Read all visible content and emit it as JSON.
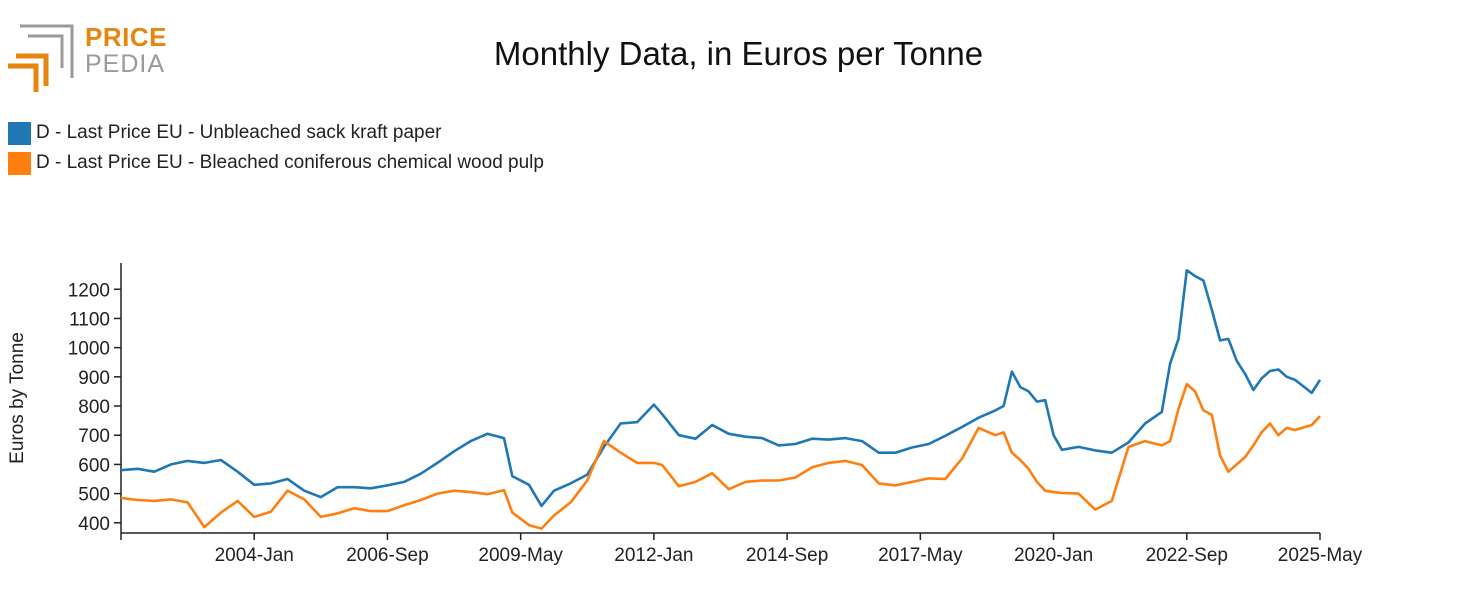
{
  "header": {
    "logo_top": "PRICE",
    "logo_bottom": "PEDIA",
    "title": "Monthly Data, in Euros per Tonne"
  },
  "colors": {
    "series_1": "#1f77b4",
    "series_2": "#ff7f0e",
    "logo_orange": "#e8850f",
    "logo_gray": "#9a9a9a"
  },
  "chart_data": {
    "type": "line",
    "title": "Monthly Data, in Euros per Tonne",
    "xlabel": "",
    "ylabel": "Euros by Tonne",
    "x_start": "2001-May",
    "x_end": "2025-May",
    "xticks": [
      "2004-Jan",
      "2006-Sep",
      "2009-May",
      "2012-Jan",
      "2014-Sep",
      "2017-May",
      "2020-Jan",
      "2022-Sep",
      "2025-May"
    ],
    "yticks": [
      400,
      500,
      600,
      700,
      800,
      900,
      1000,
      1100,
      1200
    ],
    "ylim": [
      365,
      1290
    ],
    "grid": false,
    "legend_position": "top-left",
    "series": [
      {
        "name": "D - Last Price EU - Unbleached sack kraft paper",
        "color": "#1f77b4",
        "points": [
          [
            "2001-05",
            580
          ],
          [
            "2001-09",
            585
          ],
          [
            "2002-01",
            575
          ],
          [
            "2002-05",
            600
          ],
          [
            "2002-09",
            612
          ],
          [
            "2003-01",
            605
          ],
          [
            "2003-05",
            615
          ],
          [
            "2003-09",
            575
          ],
          [
            "2004-01",
            530
          ],
          [
            "2004-05",
            535
          ],
          [
            "2004-09",
            550
          ],
          [
            "2005-01",
            510
          ],
          [
            "2005-05",
            488
          ],
          [
            "2005-09",
            522
          ],
          [
            "2006-01",
            522
          ],
          [
            "2006-05",
            518
          ],
          [
            "2006-09",
            528
          ],
          [
            "2007-01",
            540
          ],
          [
            "2007-05",
            568
          ],
          [
            "2007-09",
            605
          ],
          [
            "2008-01",
            645
          ],
          [
            "2008-05",
            680
          ],
          [
            "2008-09",
            705
          ],
          [
            "2009-01",
            690
          ],
          [
            "2009-03",
            560
          ],
          [
            "2009-07",
            530
          ],
          [
            "2009-10",
            458
          ],
          [
            "2010-01",
            510
          ],
          [
            "2010-05",
            535
          ],
          [
            "2010-09",
            565
          ],
          [
            "2011-01",
            660
          ],
          [
            "2011-05",
            740
          ],
          [
            "2011-09",
            745
          ],
          [
            "2012-01",
            805
          ],
          [
            "2012-03",
            772
          ],
          [
            "2012-07",
            700
          ],
          [
            "2012-11",
            688
          ],
          [
            "2013-03",
            735
          ],
          [
            "2013-07",
            705
          ],
          [
            "2013-11",
            695
          ],
          [
            "2014-03",
            690
          ],
          [
            "2014-07",
            665
          ],
          [
            "2014-11",
            670
          ],
          [
            "2015-03",
            688
          ],
          [
            "2015-07",
            685
          ],
          [
            "2015-11",
            690
          ],
          [
            "2016-03",
            680
          ],
          [
            "2016-07",
            640
          ],
          [
            "2016-11",
            640
          ],
          [
            "2017-03",
            658
          ],
          [
            "2017-07",
            670
          ],
          [
            "2017-11",
            698
          ],
          [
            "2018-03",
            728
          ],
          [
            "2018-07",
            760
          ],
          [
            "2018-11",
            785
          ],
          [
            "2019-01",
            800
          ],
          [
            "2019-03",
            918
          ],
          [
            "2019-05",
            865
          ],
          [
            "2019-07",
            850
          ],
          [
            "2019-09",
            815
          ],
          [
            "2019-11",
            820
          ],
          [
            "2020-01",
            700
          ],
          [
            "2020-03",
            650
          ],
          [
            "2020-07",
            660
          ],
          [
            "2020-11",
            648
          ],
          [
            "2021-03",
            640
          ],
          [
            "2021-07",
            675
          ],
          [
            "2021-11",
            740
          ],
          [
            "2022-03",
            780
          ],
          [
            "2022-05",
            945
          ],
          [
            "2022-07",
            1030
          ],
          [
            "2022-09",
            1265
          ],
          [
            "2022-11",
            1245
          ],
          [
            "2023-01",
            1230
          ],
          [
            "2023-03",
            1130
          ],
          [
            "2023-05",
            1025
          ],
          [
            "2023-07",
            1030
          ],
          [
            "2023-09",
            955
          ],
          [
            "2023-11",
            910
          ],
          [
            "2024-01",
            855
          ],
          [
            "2024-03",
            895
          ],
          [
            "2024-05",
            920
          ],
          [
            "2024-07",
            925
          ],
          [
            "2024-09",
            900
          ],
          [
            "2024-11",
            890
          ],
          [
            "2025-03",
            845
          ],
          [
            "2025-05",
            890
          ]
        ]
      },
      {
        "name": "D - Last Price EU - Bleached coniferous chemical wood pulp",
        "color": "#ff7f0e",
        "points": [
          [
            "2001-05",
            485
          ],
          [
            "2001-09",
            478
          ],
          [
            "2002-01",
            475
          ],
          [
            "2002-05",
            480
          ],
          [
            "2002-09",
            470
          ],
          [
            "2003-01",
            385
          ],
          [
            "2003-05",
            435
          ],
          [
            "2003-09",
            475
          ],
          [
            "2004-01",
            420
          ],
          [
            "2004-05",
            438
          ],
          [
            "2004-09",
            510
          ],
          [
            "2005-01",
            480
          ],
          [
            "2005-05",
            420
          ],
          [
            "2005-09",
            432
          ],
          [
            "2006-01",
            450
          ],
          [
            "2006-05",
            440
          ],
          [
            "2006-09",
            440
          ],
          [
            "2007-01",
            460
          ],
          [
            "2007-05",
            478
          ],
          [
            "2007-09",
            500
          ],
          [
            "2008-01",
            510
          ],
          [
            "2008-05",
            505
          ],
          [
            "2008-09",
            498
          ],
          [
            "2009-01",
            512
          ],
          [
            "2009-03",
            435
          ],
          [
            "2009-07",
            392
          ],
          [
            "2009-10",
            380
          ],
          [
            "2010-01",
            425
          ],
          [
            "2010-05",
            470
          ],
          [
            "2010-09",
            545
          ],
          [
            "2011-01",
            680
          ],
          [
            "2011-05",
            640
          ],
          [
            "2011-09",
            605
          ],
          [
            "2012-01",
            605
          ],
          [
            "2012-03",
            598
          ],
          [
            "2012-07",
            525
          ],
          [
            "2012-11",
            540
          ],
          [
            "2013-03",
            570
          ],
          [
            "2013-07",
            515
          ],
          [
            "2013-11",
            540
          ],
          [
            "2014-03",
            545
          ],
          [
            "2014-07",
            545
          ],
          [
            "2014-11",
            555
          ],
          [
            "2015-03",
            590
          ],
          [
            "2015-07",
            605
          ],
          [
            "2015-11",
            612
          ],
          [
            "2016-03",
            598
          ],
          [
            "2016-07",
            535
          ],
          [
            "2016-11",
            528
          ],
          [
            "2017-03",
            540
          ],
          [
            "2017-07",
            552
          ],
          [
            "2017-11",
            550
          ],
          [
            "2018-03",
            620
          ],
          [
            "2018-07",
            725
          ],
          [
            "2018-11",
            700
          ],
          [
            "2019-01",
            710
          ],
          [
            "2019-03",
            640
          ],
          [
            "2019-05",
            615
          ],
          [
            "2019-07",
            585
          ],
          [
            "2019-09",
            540
          ],
          [
            "2019-11",
            510
          ],
          [
            "2020-01",
            505
          ],
          [
            "2020-03",
            502
          ],
          [
            "2020-07",
            500
          ],
          [
            "2020-11",
            445
          ],
          [
            "2021-03",
            475
          ],
          [
            "2021-07",
            660
          ],
          [
            "2021-11",
            680
          ],
          [
            "2022-03",
            665
          ],
          [
            "2022-05",
            680
          ],
          [
            "2022-07",
            790
          ],
          [
            "2022-09",
            875
          ],
          [
            "2022-11",
            850
          ],
          [
            "2023-01",
            785
          ],
          [
            "2023-03",
            770
          ],
          [
            "2023-05",
            630
          ],
          [
            "2023-07",
            575
          ],
          [
            "2023-09",
            600
          ],
          [
            "2023-11",
            625
          ],
          [
            "2024-01",
            665
          ],
          [
            "2024-03",
            710
          ],
          [
            "2024-05",
            740
          ],
          [
            "2024-07",
            700
          ],
          [
            "2024-09",
            725
          ],
          [
            "2024-11",
            718
          ],
          [
            "2025-03",
            735
          ],
          [
            "2025-05",
            765
          ]
        ]
      }
    ]
  }
}
